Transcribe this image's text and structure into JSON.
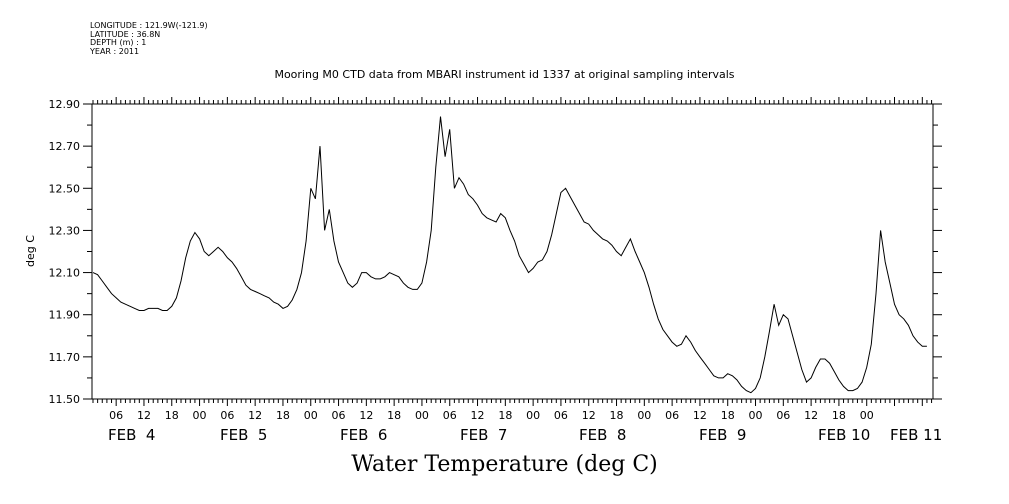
{
  "metadata": {
    "longitude": "LONGITUDE : 121.9W(-121.9)",
    "latitude": "LATITUDE : 36.8N",
    "depth": "DEPTH (m) : 1",
    "year": "YEAR : 2011"
  },
  "footer_label": "Water Temperature (deg C)",
  "chart_data": {
    "type": "line",
    "title": "Mooring M0 CTD data from MBARI instrument id 1337 at original sampling intervals",
    "xlabel": "",
    "ylabel": "deg C",
    "ylim": [
      11.5,
      12.9
    ],
    "yticks": [
      "11.50",
      "11.70",
      "11.90",
      "12.10",
      "12.30",
      "12.50",
      "12.70",
      "12.90"
    ],
    "xlim_hours": [
      0,
      180
    ],
    "hour_ticks": [
      "06",
      "12",
      "18",
      "00",
      "06",
      "12",
      "18",
      "00",
      "06",
      "12",
      "18",
      "00",
      "06",
      "12",
      "18",
      "00",
      "06",
      "12",
      "18",
      "00",
      "06",
      "12",
      "18",
      "00",
      "06",
      "12",
      "18",
      "00"
    ],
    "date_labels": [
      "FEB  4",
      "FEB  5",
      "FEB  6",
      "FEB  7",
      "FEB  8",
      "FEB  9",
      "FEB 10",
      "FEB 11"
    ],
    "grid": false,
    "legend": "none",
    "series": [
      {
        "color": "#000000",
        "points": [
          [
            0,
            12.1
          ],
          [
            1,
            12.09
          ],
          [
            2,
            12.06
          ],
          [
            3,
            12.03
          ],
          [
            4,
            12.0
          ],
          [
            5,
            11.98
          ],
          [
            6,
            11.96
          ],
          [
            7,
            11.95
          ],
          [
            8,
            11.94
          ],
          [
            9,
            11.93
          ],
          [
            10,
            11.92
          ],
          [
            11,
            11.92
          ],
          [
            12,
            11.93
          ],
          [
            13,
            11.93
          ],
          [
            14,
            11.93
          ],
          [
            15,
            11.92
          ],
          [
            16,
            11.92
          ],
          [
            17,
            11.94
          ],
          [
            18,
            11.98
          ],
          [
            19,
            12.06
          ],
          [
            20,
            12.17
          ],
          [
            21,
            12.25
          ],
          [
            22,
            12.29
          ],
          [
            23,
            12.26
          ],
          [
            24,
            12.2
          ],
          [
            25,
            12.18
          ],
          [
            26,
            12.2
          ],
          [
            27,
            12.22
          ],
          [
            28,
            12.2
          ],
          [
            29,
            12.17
          ],
          [
            30,
            12.15
          ],
          [
            31,
            12.12
          ],
          [
            32,
            12.08
          ],
          [
            33,
            12.04
          ],
          [
            34,
            12.02
          ],
          [
            35,
            12.01
          ],
          [
            36,
            12.0
          ],
          [
            37,
            11.99
          ],
          [
            38,
            11.98
          ],
          [
            39,
            11.96
          ],
          [
            40,
            11.95
          ],
          [
            41,
            11.93
          ],
          [
            42,
            11.94
          ],
          [
            43,
            11.97
          ],
          [
            44,
            12.02
          ],
          [
            45,
            12.1
          ],
          [
            46,
            12.25
          ],
          [
            47,
            12.5
          ],
          [
            48,
            12.45
          ],
          [
            49,
            12.7
          ],
          [
            50,
            12.3
          ],
          [
            51,
            12.4
          ],
          [
            52,
            12.25
          ],
          [
            53,
            12.15
          ],
          [
            54,
            12.1
          ],
          [
            55,
            12.05
          ],
          [
            56,
            12.03
          ],
          [
            57,
            12.05
          ],
          [
            58,
            12.1
          ],
          [
            59,
            12.1
          ],
          [
            60,
            12.08
          ],
          [
            61,
            12.07
          ],
          [
            62,
            12.07
          ],
          [
            63,
            12.08
          ],
          [
            64,
            12.1
          ],
          [
            65,
            12.09
          ],
          [
            66,
            12.08
          ],
          [
            67,
            12.05
          ],
          [
            68,
            12.03
          ],
          [
            69,
            12.02
          ],
          [
            70,
            12.02
          ],
          [
            71,
            12.05
          ],
          [
            72,
            12.15
          ],
          [
            73,
            12.3
          ],
          [
            74,
            12.6
          ],
          [
            75,
            12.84
          ],
          [
            76,
            12.65
          ],
          [
            77,
            12.78
          ],
          [
            78,
            12.5
          ],
          [
            79,
            12.55
          ],
          [
            80,
            12.52
          ],
          [
            81,
            12.47
          ],
          [
            82,
            12.45
          ],
          [
            83,
            12.42
          ],
          [
            84,
            12.38
          ],
          [
            85,
            12.36
          ],
          [
            86,
            12.35
          ],
          [
            87,
            12.34
          ],
          [
            88,
            12.38
          ],
          [
            89,
            12.36
          ],
          [
            90,
            12.3
          ],
          [
            91,
            12.25
          ],
          [
            92,
            12.18
          ],
          [
            93,
            12.14
          ],
          [
            94,
            12.1
          ],
          [
            95,
            12.12
          ],
          [
            96,
            12.15
          ],
          [
            97,
            12.16
          ],
          [
            98,
            12.2
          ],
          [
            99,
            12.28
          ],
          [
            100,
            12.38
          ],
          [
            101,
            12.48
          ],
          [
            102,
            12.5
          ],
          [
            103,
            12.46
          ],
          [
            104,
            12.42
          ],
          [
            105,
            12.38
          ],
          [
            106,
            12.34
          ],
          [
            107,
            12.33
          ],
          [
            108,
            12.3
          ],
          [
            109,
            12.28
          ],
          [
            110,
            12.26
          ],
          [
            111,
            12.25
          ],
          [
            112,
            12.23
          ],
          [
            113,
            12.2
          ],
          [
            114,
            12.18
          ],
          [
            115,
            12.22
          ],
          [
            116,
            12.26
          ],
          [
            117,
            12.2
          ],
          [
            118,
            12.15
          ],
          [
            119,
            12.1
          ],
          [
            120,
            12.03
          ],
          [
            121,
            11.95
          ],
          [
            122,
            11.88
          ],
          [
            123,
            11.83
          ],
          [
            124,
            11.8
          ],
          [
            125,
            11.77
          ],
          [
            126,
            11.75
          ],
          [
            127,
            11.76
          ],
          [
            128,
            11.8
          ],
          [
            129,
            11.77
          ],
          [
            130,
            11.73
          ],
          [
            131,
            11.7
          ],
          [
            132,
            11.67
          ],
          [
            133,
            11.64
          ],
          [
            134,
            11.61
          ],
          [
            135,
            11.6
          ],
          [
            136,
            11.6
          ],
          [
            137,
            11.62
          ],
          [
            138,
            11.61
          ],
          [
            139,
            11.59
          ],
          [
            140,
            11.56
          ],
          [
            141,
            11.54
          ],
          [
            142,
            11.53
          ],
          [
            143,
            11.55
          ],
          [
            144,
            11.6
          ],
          [
            145,
            11.7
          ],
          [
            146,
            11.82
          ],
          [
            147,
            11.95
          ],
          [
            148,
            11.85
          ],
          [
            149,
            11.9
          ],
          [
            150,
            11.88
          ],
          [
            151,
            11.8
          ],
          [
            152,
            11.72
          ],
          [
            153,
            11.64
          ],
          [
            154,
            11.58
          ],
          [
            155,
            11.6
          ],
          [
            156,
            11.65
          ],
          [
            157,
            11.69
          ],
          [
            158,
            11.69
          ],
          [
            159,
            11.67
          ],
          [
            160,
            11.63
          ],
          [
            161,
            11.59
          ],
          [
            162,
            11.56
          ],
          [
            163,
            11.54
          ],
          [
            164,
            11.54
          ],
          [
            165,
            11.55
          ],
          [
            166,
            11.58
          ],
          [
            167,
            11.65
          ],
          [
            168,
            11.76
          ],
          [
            169,
            12.0
          ],
          [
            170,
            12.3
          ],
          [
            171,
            12.15
          ],
          [
            172,
            12.05
          ],
          [
            173,
            11.95
          ],
          [
            174,
            11.9
          ],
          [
            175,
            11.88
          ],
          [
            176,
            11.85
          ],
          [
            177,
            11.8
          ],
          [
            178,
            11.77
          ],
          [
            179,
            11.75
          ],
          [
            180,
            11.75
          ]
        ]
      }
    ]
  }
}
